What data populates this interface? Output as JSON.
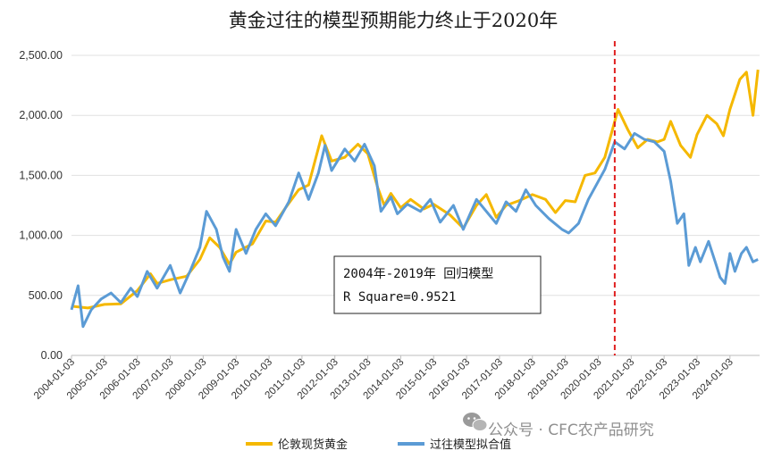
{
  "chart_data": {
    "type": "line",
    "title": "黄金过往的模型预期能力终止于2020年",
    "xlabel": "",
    "ylabel": "",
    "ylim": [
      0,
      2500
    ],
    "y_ticks": [
      "0.00",
      "500.00",
      "1,000.00",
      "1,500.00",
      "2,000.00",
      "2,500.00"
    ],
    "x_ticks": [
      "2004-01-03",
      "2005-01-03",
      "2006-01-03",
      "2007-01-03",
      "2008-01-03",
      "2009-01-03",
      "2010-01-03",
      "2011-01-03",
      "2012-01-03",
      "2013-01-03",
      "2014-01-03",
      "2015-01-03",
      "2016-01-03",
      "2017-01-03",
      "2018-01-03",
      "2019-01-03",
      "2020-01-03",
      "2021-01-03",
      "2022-01-03",
      "2023-01-03",
      "2024-01-03"
    ],
    "x_range": [
      2004.0,
      2024.9
    ],
    "vertical_marker": {
      "x": 2020.5,
      "color": "#e02020",
      "style": "dashed"
    },
    "annotation": {
      "line1": "2004年-2019年 回归模型",
      "line2": "R Square=0.9521"
    },
    "legend_position": "bottom",
    "series": [
      {
        "name": "伦敦现货黄金",
        "color": "#f5b800",
        "points": [
          [
            2004.0,
            410
          ],
          [
            2004.5,
            395
          ],
          [
            2005.0,
            425
          ],
          [
            2005.5,
            430
          ],
          [
            2006.0,
            540
          ],
          [
            2006.4,
            680
          ],
          [
            2006.6,
            600
          ],
          [
            2007.0,
            630
          ],
          [
            2007.5,
            660
          ],
          [
            2007.9,
            800
          ],
          [
            2008.2,
            980
          ],
          [
            2008.5,
            900
          ],
          [
            2008.8,
            760
          ],
          [
            2009.0,
            860
          ],
          [
            2009.5,
            930
          ],
          [
            2009.9,
            1120
          ],
          [
            2010.2,
            1110
          ],
          [
            2010.5,
            1230
          ],
          [
            2010.9,
            1380
          ],
          [
            2011.2,
            1420
          ],
          [
            2011.6,
            1830
          ],
          [
            2011.9,
            1620
          ],
          [
            2012.3,
            1650
          ],
          [
            2012.7,
            1760
          ],
          [
            2013.0,
            1680
          ],
          [
            2013.3,
            1400
          ],
          [
            2013.5,
            1250
          ],
          [
            2013.7,
            1350
          ],
          [
            2014.0,
            1230
          ],
          [
            2014.3,
            1300
          ],
          [
            2014.7,
            1220
          ],
          [
            2015.0,
            1260
          ],
          [
            2015.5,
            1170
          ],
          [
            2015.9,
            1060
          ],
          [
            2016.3,
            1250
          ],
          [
            2016.6,
            1340
          ],
          [
            2016.9,
            1150
          ],
          [
            2017.2,
            1250
          ],
          [
            2017.6,
            1290
          ],
          [
            2018.0,
            1340
          ],
          [
            2018.4,
            1300
          ],
          [
            2018.7,
            1190
          ],
          [
            2019.0,
            1290
          ],
          [
            2019.3,
            1280
          ],
          [
            2019.6,
            1500
          ],
          [
            2019.9,
            1520
          ],
          [
            2020.2,
            1650
          ],
          [
            2020.6,
            2050
          ],
          [
            2020.9,
            1880
          ],
          [
            2021.2,
            1730
          ],
          [
            2021.5,
            1800
          ],
          [
            2021.8,
            1780
          ],
          [
            2022.0,
            1800
          ],
          [
            2022.2,
            1950
          ],
          [
            2022.5,
            1750
          ],
          [
            2022.8,
            1650
          ],
          [
            2023.0,
            1840
          ],
          [
            2023.3,
            2000
          ],
          [
            2023.6,
            1930
          ],
          [
            2023.8,
            1830
          ],
          [
            2024.0,
            2050
          ],
          [
            2024.3,
            2300
          ],
          [
            2024.5,
            2360
          ],
          [
            2024.7,
            2000
          ],
          [
            2024.85,
            2380
          ]
        ]
      },
      {
        "name": "过往模型拟合值",
        "color": "#5b9bd5",
        "points": [
          [
            2004.0,
            380
          ],
          [
            2004.2,
            580
          ],
          [
            2004.35,
            240
          ],
          [
            2004.6,
            380
          ],
          [
            2004.9,
            470
          ],
          [
            2005.2,
            520
          ],
          [
            2005.5,
            440
          ],
          [
            2005.8,
            560
          ],
          [
            2006.0,
            490
          ],
          [
            2006.3,
            700
          ],
          [
            2006.6,
            560
          ],
          [
            2007.0,
            750
          ],
          [
            2007.3,
            520
          ],
          [
            2007.6,
            700
          ],
          [
            2007.9,
            900
          ],
          [
            2008.1,
            1200
          ],
          [
            2008.4,
            1050
          ],
          [
            2008.6,
            820
          ],
          [
            2008.8,
            700
          ],
          [
            2009.0,
            1050
          ],
          [
            2009.3,
            850
          ],
          [
            2009.6,
            1050
          ],
          [
            2009.9,
            1180
          ],
          [
            2010.2,
            1080
          ],
          [
            2010.6,
            1280
          ],
          [
            2010.9,
            1520
          ],
          [
            2011.2,
            1300
          ],
          [
            2011.5,
            1520
          ],
          [
            2011.7,
            1750
          ],
          [
            2011.9,
            1540
          ],
          [
            2012.3,
            1720
          ],
          [
            2012.6,
            1620
          ],
          [
            2012.9,
            1760
          ],
          [
            2013.2,
            1580
          ],
          [
            2013.4,
            1200
          ],
          [
            2013.7,
            1320
          ],
          [
            2013.9,
            1180
          ],
          [
            2014.2,
            1260
          ],
          [
            2014.6,
            1200
          ],
          [
            2014.9,
            1300
          ],
          [
            2015.2,
            1110
          ],
          [
            2015.6,
            1250
          ],
          [
            2015.9,
            1050
          ],
          [
            2016.3,
            1300
          ],
          [
            2016.6,
            1200
          ],
          [
            2016.9,
            1100
          ],
          [
            2017.2,
            1280
          ],
          [
            2017.5,
            1200
          ],
          [
            2017.8,
            1380
          ],
          [
            2018.1,
            1250
          ],
          [
            2018.5,
            1140
          ],
          [
            2018.9,
            1050
          ],
          [
            2019.1,
            1020
          ],
          [
            2019.4,
            1100
          ],
          [
            2019.7,
            1300
          ],
          [
            2019.9,
            1400
          ],
          [
            2020.2,
            1550
          ],
          [
            2020.5,
            1780
          ],
          [
            2020.8,
            1720
          ],
          [
            2021.1,
            1850
          ],
          [
            2021.4,
            1800
          ],
          [
            2021.7,
            1780
          ],
          [
            2022.0,
            1700
          ],
          [
            2022.2,
            1450
          ],
          [
            2022.4,
            1100
          ],
          [
            2022.6,
            1180
          ],
          [
            2022.75,
            750
          ],
          [
            2022.95,
            900
          ],
          [
            2023.1,
            780
          ],
          [
            2023.35,
            950
          ],
          [
            2023.55,
            780
          ],
          [
            2023.7,
            650
          ],
          [
            2023.85,
            600
          ],
          [
            2024.0,
            850
          ],
          [
            2024.15,
            700
          ],
          [
            2024.35,
            850
          ],
          [
            2024.5,
            900
          ],
          [
            2024.7,
            780
          ],
          [
            2024.85,
            800
          ]
        ]
      }
    ]
  },
  "watermark": {
    "text": "公众号 · CFC农产品研究",
    "icon": "wechat-icon"
  }
}
